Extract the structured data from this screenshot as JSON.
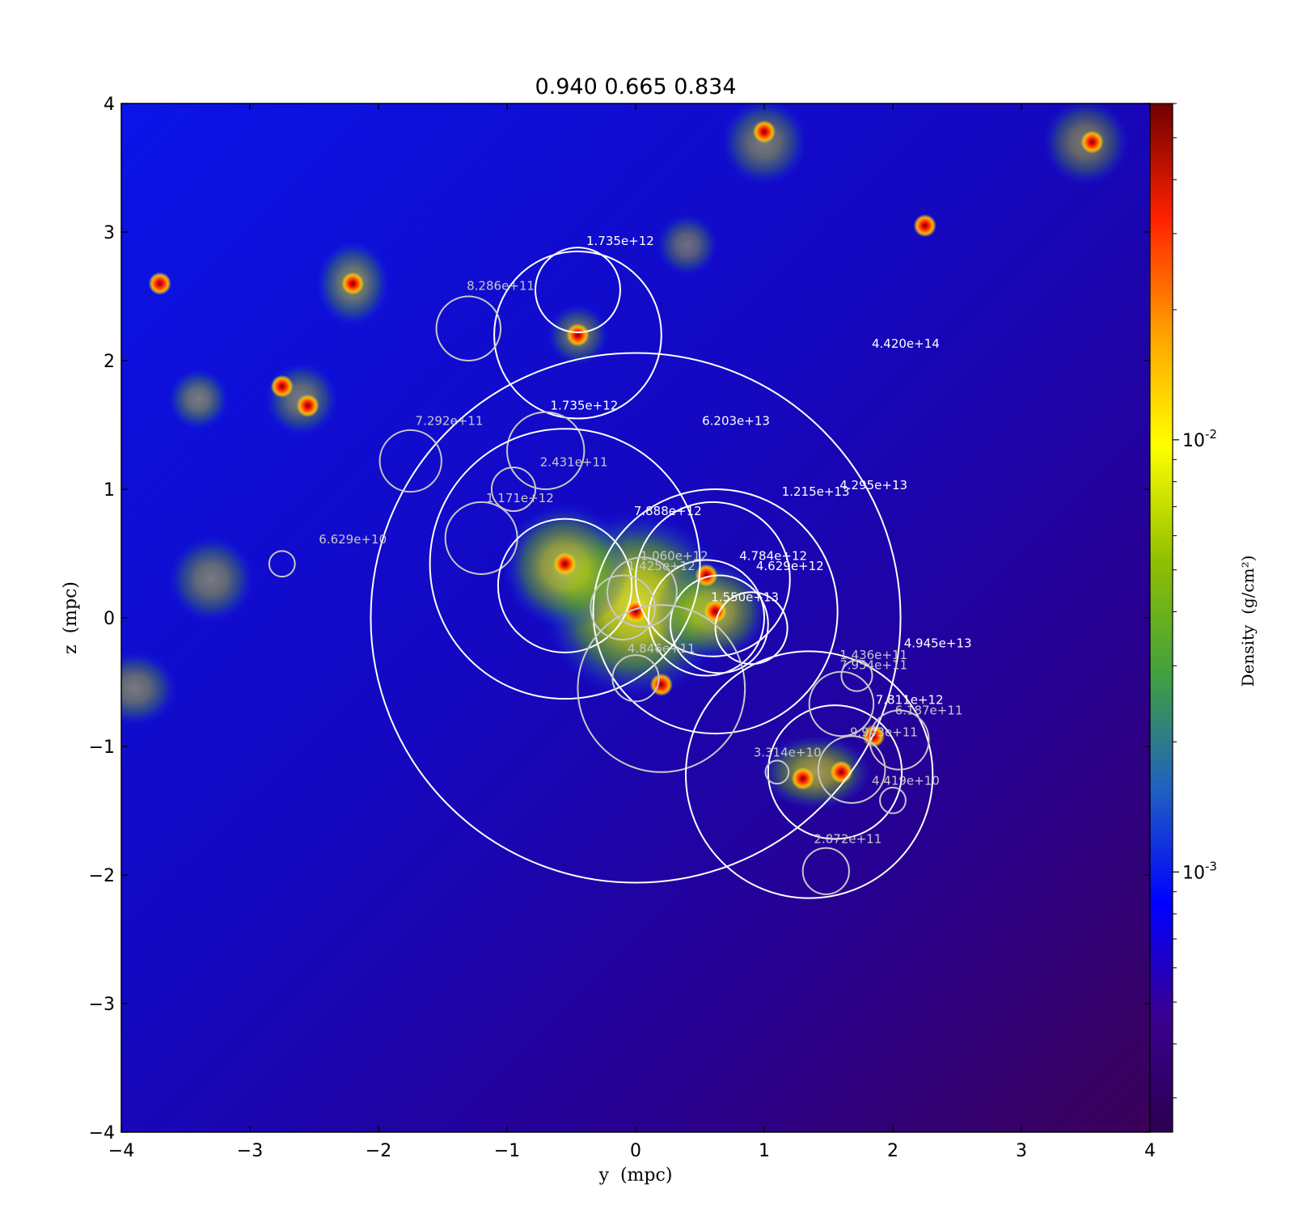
{
  "chart_data": {
    "type": "heatmap",
    "title": "0.940 0.665 0.834",
    "xlabel": "y  (mpc)",
    "ylabel": "z  (mpc)",
    "xlim": [
      -4,
      4
    ],
    "ylim": [
      -4,
      4
    ],
    "xticks": [
      -4,
      -3,
      -2,
      -1,
      0,
      1,
      2,
      3,
      4
    ],
    "yticks": [
      -4,
      -3,
      -2,
      -1,
      0,
      1,
      2,
      3,
      4
    ],
    "xtick_labels": [
      "−4",
      "−3",
      "−2",
      "−1",
      "0",
      "1",
      "2",
      "3",
      "4"
    ],
    "ytick_labels": [
      "−4",
      "−3",
      "−2",
      "−1",
      "0",
      "1",
      "2",
      "3",
      "4"
    ],
    "colorbar": {
      "label": "Density  (g/cm²)",
      "scale": "log",
      "range": [
        0.00025,
        0.06
      ],
      "ticks": [
        {
          "value": 0.01,
          "base": "10",
          "exp": "-2"
        },
        {
          "value": 0.001,
          "base": "10",
          "exp": "-3"
        }
      ],
      "colors": [
        "#2a0050",
        "#3a0090",
        "#0000ff",
        "#2060c0",
        "#40a040",
        "#90c000",
        "#ffff00",
        "#ffa000",
        "#ff2000",
        "#700000"
      ]
    },
    "density_blobs": [
      {
        "y": 0.0,
        "z": 0.1,
        "sy": 0.75,
        "sz": 0.75,
        "level": 0.85
      },
      {
        "y": -0.55,
        "z": 0.4,
        "sy": 0.5,
        "sz": 0.5,
        "level": 0.7
      },
      {
        "y": 0.6,
        "z": 0.05,
        "sy": 0.45,
        "sz": 0.4,
        "level": 0.65
      },
      {
        "y": 1.4,
        "z": -1.2,
        "sy": 0.45,
        "sz": 0.3,
        "level": 0.6
      },
      {
        "y": -2.2,
        "z": 2.6,
        "sy": 0.3,
        "sz": 0.35,
        "level": 0.5
      },
      {
        "y": -3.3,
        "z": 0.3,
        "sy": 0.35,
        "sz": 0.35,
        "level": 0.45
      },
      {
        "y": -3.9,
        "z": -0.55,
        "sy": 0.35,
        "sz": 0.3,
        "level": 0.45
      },
      {
        "y": -3.4,
        "z": 1.7,
        "sy": 0.25,
        "sz": 0.25,
        "level": 0.45
      },
      {
        "y": 1.0,
        "z": 3.7,
        "sy": 0.35,
        "sz": 0.35,
        "level": 0.45
      },
      {
        "y": 3.5,
        "z": 3.7,
        "sy": 0.35,
        "sz": 0.35,
        "level": 0.45
      },
      {
        "y": 0.4,
        "z": 2.9,
        "sy": 0.25,
        "sz": 0.25,
        "level": 0.4
      },
      {
        "y": -2.6,
        "z": 1.7,
        "sy": 0.3,
        "sz": 0.3,
        "level": 0.45
      },
      {
        "y": -0.45,
        "z": 2.2,
        "sy": 0.25,
        "sz": 0.25,
        "level": 0.45
      }
    ],
    "dense_cores": [
      {
        "y": -3.7,
        "z": 2.6
      },
      {
        "y": -2.2,
        "z": 2.6
      },
      {
        "y": -2.75,
        "z": 1.8
      },
      {
        "y": -2.55,
        "z": 1.65
      },
      {
        "y": -0.45,
        "z": 2.2
      },
      {
        "y": 1.0,
        "z": 3.78
      },
      {
        "y": 3.55,
        "z": 3.7
      },
      {
        "y": 2.25,
        "z": 3.05
      },
      {
        "y": -0.55,
        "z": 0.42
      },
      {
        "y": 0.0,
        "z": 0.05
      },
      {
        "y": 0.62,
        "z": 0.05
      },
      {
        "y": 0.55,
        "z": 0.33
      },
      {
        "y": 0.2,
        "z": -0.52
      },
      {
        "y": 1.3,
        "z": -1.25
      },
      {
        "y": 1.6,
        "z": -1.2
      },
      {
        "y": 1.85,
        "z": -0.92
      }
    ],
    "halos": [
      {
        "y": 0.0,
        "z": 0.0,
        "r": 2.06,
        "label": "4.420e+14",
        "label_y": 2.1,
        "label_z": 2.1,
        "shade": "white"
      },
      {
        "y": -0.45,
        "z": 2.2,
        "r": 0.65,
        "label": "1.735e+12",
        "label_y": -0.4,
        "label_z": 1.62,
        "shade": "white"
      },
      {
        "y": -0.45,
        "z": 2.55,
        "r": 0.33,
        "label": "1.735e+12",
        "label_y": -0.12,
        "label_z": 2.9,
        "shade": "white"
      },
      {
        "y": -1.3,
        "z": 2.25,
        "r": 0.25,
        "label": "8.286e+11",
        "label_y": -1.05,
        "label_z": 2.55,
        "shade": "gray"
      },
      {
        "y": -1.75,
        "z": 1.22,
        "r": 0.24,
        "label": "7.292e+11",
        "label_y": -1.45,
        "label_z": 1.5,
        "shade": "gray"
      },
      {
        "y": -0.7,
        "z": 1.3,
        "r": 0.3,
        "label": "2.431e+11",
        "label_y": -0.48,
        "label_z": 1.18,
        "shade": "gray"
      },
      {
        "y": -0.95,
        "z": 1.0,
        "r": 0.17,
        "label": "1.171e+12",
        "label_y": -0.9,
        "label_z": 0.9,
        "shade": "gray"
      },
      {
        "y": -1.2,
        "z": 0.62,
        "r": 0.28,
        "label": "",
        "label_y": 0,
        "label_z": 0,
        "shade": "gray"
      },
      {
        "y": -2.75,
        "z": 0.42,
        "r": 0.1,
        "label": "6.629e+10",
        "label_y": -2.2,
        "label_z": 0.58,
        "shade": "gray"
      },
      {
        "y": -0.55,
        "z": 0.42,
        "r": 1.05,
        "label": "6.203e+13",
        "label_y": 0.78,
        "label_z": 1.5,
        "shade": "white"
      },
      {
        "y": -0.55,
        "z": 0.25,
        "r": 0.52,
        "label": "7.888e+12",
        "label_y": 0.25,
        "label_z": 0.8,
        "shade": "white"
      },
      {
        "y": 0.62,
        "z": 0.05,
        "r": 0.95,
        "label": "4.295e+13",
        "label_y": 1.85,
        "label_z": 1.0,
        "shade": "white"
      },
      {
        "y": 0.6,
        "z": 0.3,
        "r": 0.6,
        "label": "1.215e+13",
        "label_y": 1.4,
        "label_z": 0.95,
        "shade": "white"
      },
      {
        "y": 0.55,
        "z": 0.0,
        "r": 0.45,
        "label": "4.784e+12",
        "label_y": 1.07,
        "label_z": 0.45,
        "shade": "white"
      },
      {
        "y": 0.65,
        "z": -0.05,
        "r": 0.38,
        "label": "4.629e+12",
        "label_y": 1.2,
        "label_z": 0.37,
        "shade": "white"
      },
      {
        "y": 0.9,
        "z": -0.08,
        "r": 0.28,
        "label": "1.550e+13",
        "label_y": 0.85,
        "label_z": 0.13,
        "shade": "white"
      },
      {
        "y": 0.05,
        "z": 0.2,
        "r": 0.27,
        "label": "1.060e+12",
        "label_y": 0.3,
        "label_z": 0.45,
        "shade": "gray"
      },
      {
        "y": -0.1,
        "z": 0.08,
        "r": 0.25,
        "label": "1.425e+12",
        "label_y": 0.2,
        "label_z": 0.37,
        "shade": "gray"
      },
      {
        "y": 0.2,
        "z": -0.55,
        "r": 0.65,
        "label": "4.846e+11",
        "label_y": 0.2,
        "label_z": -0.27,
        "shade": "gray"
      },
      {
        "y": 0.0,
        "z": -0.47,
        "r": 0.18,
        "label": "",
        "label_y": 0,
        "label_z": 0,
        "shade": "gray"
      },
      {
        "y": 1.35,
        "z": -1.22,
        "r": 0.96,
        "label": "4.945e+13",
        "label_y": 2.35,
        "label_z": -0.23,
        "shade": "white"
      },
      {
        "y": 1.55,
        "z": -1.2,
        "r": 0.52,
        "label": "7.811e+12",
        "label_y": 2.13,
        "label_z": -0.67,
        "shade": "white"
      },
      {
        "y": 1.6,
        "z": -0.67,
        "r": 0.25,
        "label": "7.954e+11",
        "label_y": 1.85,
        "label_z": -0.4,
        "shade": "gray"
      },
      {
        "y": 1.72,
        "z": -0.45,
        "r": 0.12,
        "label": "1.436e+11",
        "label_y": 1.85,
        "label_z": -0.32,
        "shade": "gray"
      },
      {
        "y": 2.05,
        "z": -0.95,
        "r": 0.23,
        "label": "6.187e+11",
        "label_y": 2.28,
        "label_z": -0.75,
        "shade": "gray"
      },
      {
        "y": 1.68,
        "z": -1.18,
        "r": 0.26,
        "label": "9.943e+11",
        "label_y": 1.93,
        "label_z": -0.92,
        "shade": "gray"
      },
      {
        "y": 1.1,
        "z": -1.2,
        "r": 0.09,
        "label": "3.314e+10",
        "label_y": 1.18,
        "label_z": -1.08,
        "shade": "gray"
      },
      {
        "y": 2.0,
        "z": -1.42,
        "r": 0.1,
        "label": "4.419e+10",
        "label_y": 2.1,
        "label_z": -1.3,
        "shade": "gray"
      },
      {
        "y": 1.48,
        "z": -1.97,
        "r": 0.18,
        "label": "2.872e+11",
        "label_y": 1.65,
        "label_z": -1.75,
        "shade": "gray"
      }
    ]
  }
}
